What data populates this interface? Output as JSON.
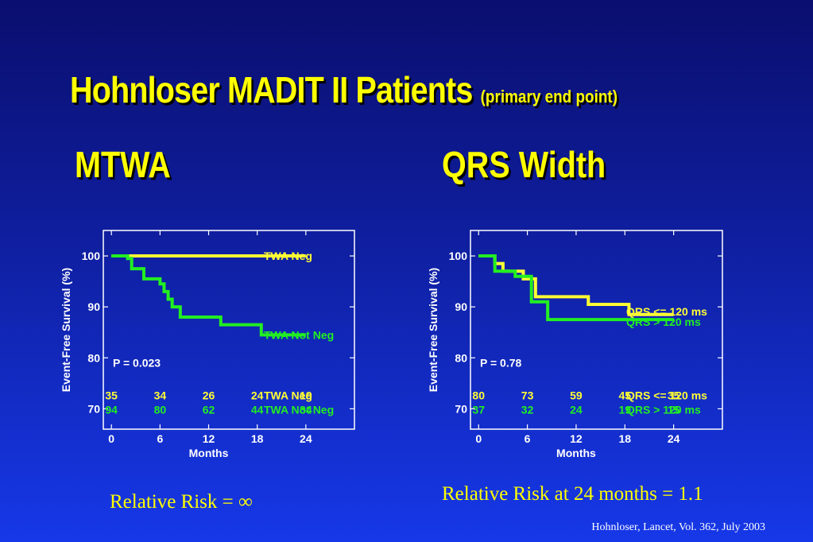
{
  "page": {
    "title": "Hohnloser MADIT II Patients",
    "title_sub": "(primary end point)",
    "section_left": "MTWA",
    "section_right": "QRS Width",
    "relative_risk_left": "Relative Risk = ∞",
    "relative_risk_right": "Relative Risk at 24 months = 1.1",
    "citation": "Hohnloser, Lancet, Vol. 362, July 2003",
    "colors": {
      "title": "#ffff00",
      "series_yellow": "#ffff33",
      "series_green": "#22ee22",
      "axis": "#ffffff"
    }
  },
  "chart_data": [
    {
      "type": "line",
      "xlabel": "Months",
      "ylabel": "Event-Free Survival (%)",
      "xlim": [
        -1,
        30
      ],
      "ylim": [
        66,
        105
      ],
      "xticks": [
        0,
        6,
        12,
        18,
        24
      ],
      "yticks": [
        70,
        80,
        90,
        100
      ],
      "annotation": "P = 0.023",
      "series": [
        {
          "name": "TWA Neg",
          "color": "#ffff33",
          "steps": [
            [
              0,
              100
            ],
            [
              24,
              100
            ]
          ],
          "at_risk": [
            "35",
            "34",
            "26",
            "24",
            "19"
          ]
        },
        {
          "name": "TWA Not Neg",
          "color": "#22ee22",
          "steps": [
            [
              0,
              100
            ],
            [
              2,
              99.5
            ],
            [
              2.5,
              97.5
            ],
            [
              4,
              95.5
            ],
            [
              6,
              94.5
            ],
            [
              6.5,
              93
            ],
            [
              7,
              91.5
            ],
            [
              7.5,
              90
            ],
            [
              8.5,
              88
            ],
            [
              13.5,
              86.5
            ],
            [
              18.5,
              84.5
            ],
            [
              24,
              84.5
            ]
          ],
          "at_risk": [
            "94",
            "80",
            "62",
            "44",
            "34"
          ]
        }
      ]
    },
    {
      "type": "line",
      "xlabel": "Months",
      "ylabel": "Event-Free Survival (%)",
      "xlim": [
        -1,
        30
      ],
      "ylim": [
        66,
        105
      ],
      "xticks": [
        0,
        6,
        12,
        18,
        24
      ],
      "yticks": [
        70,
        80,
        90,
        100
      ],
      "annotation": "P = 0.78",
      "series": [
        {
          "name": "QRS <= 120 ms",
          "color": "#ffff33",
          "steps": [
            [
              0,
              100
            ],
            [
              2,
              98.5
            ],
            [
              3,
              97
            ],
            [
              5.5,
              95.5
            ],
            [
              7,
              92
            ],
            [
              13.5,
              90.5
            ],
            [
              18.5,
              88.5
            ],
            [
              24,
              88.5
            ]
          ],
          "at_risk": [
            "80",
            "73",
            "59",
            "45",
            "35"
          ]
        },
        {
          "name": "QRS > 120 ms",
          "color": "#22ee22",
          "steps": [
            [
              0,
              100
            ],
            [
              2,
              97
            ],
            [
              4.5,
              96
            ],
            [
              6.5,
              91
            ],
            [
              8.5,
              87.5
            ],
            [
              24,
              87.5
            ]
          ],
          "at_risk": [
            "37",
            "32",
            "24",
            "19",
            "15"
          ]
        }
      ]
    }
  ]
}
